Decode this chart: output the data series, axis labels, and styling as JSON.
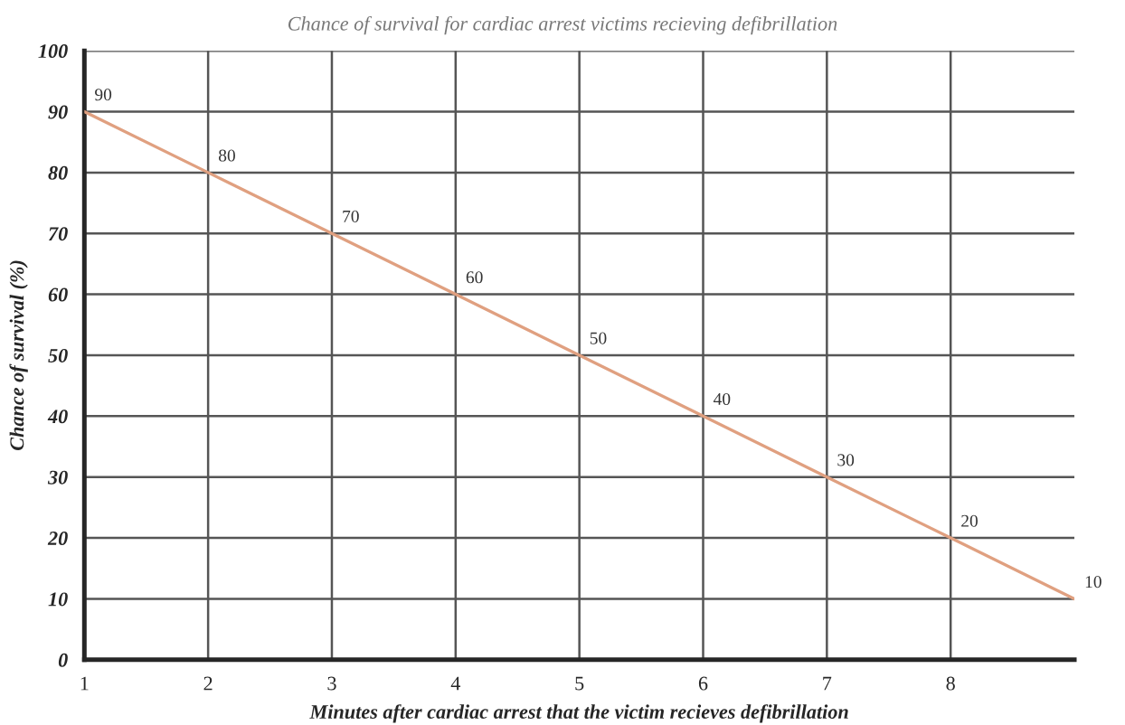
{
  "chart_data": {
    "type": "line",
    "title": "Chance of survival for cardiac arrest victims recieving defibrillation",
    "xlabel": "Minutes after cardiac arrest that the victim recieves defibrillation",
    "ylabel": "Chance of survival (%)",
    "x": [
      1,
      2,
      3,
      4,
      5,
      6,
      7,
      8,
      9
    ],
    "series": [
      {
        "color": "#e0a080",
        "values": [
          90,
          80,
          70,
          60,
          50,
          40,
          30,
          20,
          10
        ]
      }
    ],
    "xlim": [
      1,
      9
    ],
    "xticks": [
      1,
      2,
      3,
      4,
      5,
      6,
      7,
      8
    ],
    "ylim": [
      0,
      100
    ],
    "yticks": [
      0,
      10,
      20,
      30,
      40,
      50,
      60,
      70,
      80,
      90,
      100
    ],
    "grid": true,
    "data_labels": true,
    "marker": "none",
    "line_style": "solid"
  }
}
